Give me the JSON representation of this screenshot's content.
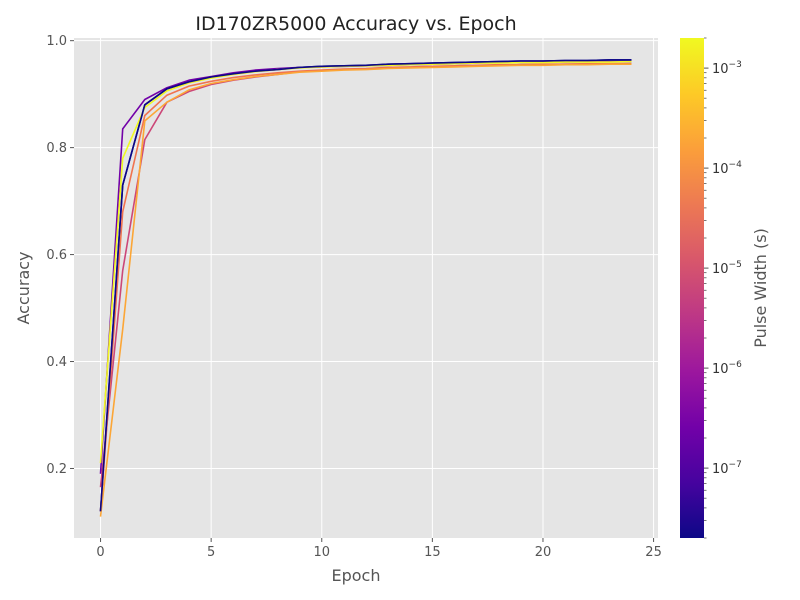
{
  "chart_data": {
    "type": "line",
    "title": "ID170ZR5000 Accuracy vs. Epoch",
    "xlabel": "Epoch",
    "ylabel": "Accuracy",
    "xlim": [
      -1.2,
      25.2
    ],
    "ylim": [
      0.07,
      1.005
    ],
    "x_ticks": [
      0,
      5,
      10,
      15,
      20,
      25
    ],
    "y_ticks": [
      0.2,
      0.4,
      0.6,
      0.8,
      1.0
    ],
    "y_tick_labels": [
      "0.2",
      "0.4",
      "0.6",
      "0.8",
      "1.0"
    ],
    "grid": true,
    "background": "#e5e5e5",
    "colorbar": {
      "label": "Pulse Width (s)",
      "scale": "log",
      "colormap": "plasma",
      "colors": [
        "#0d0887",
        "#46039f",
        "#7201a8",
        "#9c179e",
        "#bd3786",
        "#d8576b",
        "#ed7953",
        "#fb9f3a",
        "#fdca26",
        "#f0f921"
      ],
      "range": [
        2e-08,
        0.002
      ],
      "major_ticks": [
        {
          "value": 1e-07,
          "base": "10",
          "exp": "−7"
        },
        {
          "value": 1e-06,
          "base": "10",
          "exp": "−6"
        },
        {
          "value": 1e-05,
          "base": "10",
          "exp": "−5"
        },
        {
          "value": 0.0001,
          "base": "10",
          "exp": "−4"
        },
        {
          "value": 0.001,
          "base": "10",
          "exp": "−3"
        }
      ]
    },
    "x": [
      0,
      1,
      2,
      3,
      4,
      5,
      6,
      7,
      8,
      9,
      10,
      11,
      12,
      13,
      14,
      15,
      16,
      17,
      18,
      19,
      20,
      21,
      22,
      23,
      24
    ],
    "series": [
      {
        "color": "#0d0887",
        "pulse_width": 2e-08,
        "values": [
          0.12,
          0.73,
          0.88,
          0.91,
          0.923,
          0.932,
          0.938,
          0.943,
          0.946,
          0.95,
          0.952,
          0.953,
          0.954,
          0.956,
          0.957,
          0.958,
          0.959,
          0.96,
          0.961,
          0.962,
          0.962,
          0.963,
          0.963,
          0.964,
          0.964
        ]
      },
      {
        "color": "#7201a8",
        "pulse_width": 7e-07,
        "values": [
          0.19,
          0.835,
          0.89,
          0.912,
          0.926,
          0.933,
          0.94,
          0.945,
          0.948,
          0.95,
          0.951,
          0.952,
          0.953,
          0.954,
          0.955,
          0.956,
          0.957,
          0.958,
          0.959,
          0.959,
          0.96,
          0.96,
          0.961,
          0.961,
          0.961
        ]
      },
      {
        "color": "#cc4778",
        "pulse_width": 1e-05,
        "values": [
          0.165,
          0.57,
          0.815,
          0.885,
          0.905,
          0.918,
          0.926,
          0.932,
          0.937,
          0.942,
          0.944,
          0.946,
          0.947,
          0.949,
          0.95,
          0.951,
          0.952,
          0.953,
          0.954,
          0.955,
          0.955,
          0.956,
          0.956,
          0.957,
          0.957
        ]
      },
      {
        "color": "#f0734f",
        "pulse_width": 0.00015,
        "values": [
          0.12,
          0.68,
          0.86,
          0.898,
          0.915,
          0.924,
          0.931,
          0.936,
          0.94,
          0.943,
          0.945,
          0.947,
          0.948,
          0.95,
          0.951,
          0.952,
          0.953,
          0.954,
          0.955,
          0.955,
          0.956,
          0.956,
          0.957,
          0.957,
          0.957
        ]
      },
      {
        "color": "#fca636",
        "pulse_width": 0.0003,
        "values": [
          0.11,
          0.46,
          0.85,
          0.885,
          0.908,
          0.92,
          0.927,
          0.933,
          0.937,
          0.941,
          0.943,
          0.945,
          0.946,
          0.948,
          0.949,
          0.95,
          0.951,
          0.952,
          0.953,
          0.954,
          0.954,
          0.955,
          0.955,
          0.956,
          0.956
        ]
      },
      {
        "color": "#f0f921",
        "pulse_width": 0.002,
        "values": [
          0.21,
          0.78,
          0.875,
          0.906,
          0.921,
          0.93,
          0.937,
          0.942,
          0.946,
          0.949,
          0.951,
          0.952,
          0.953,
          0.954,
          0.955,
          0.956,
          0.957,
          0.958,
          0.958,
          0.959,
          0.959,
          0.96,
          0.96,
          0.96,
          0.961
        ]
      },
      {
        "color": "#0d0887",
        "pulse_width": 2e-08,
        "values": [
          0.12,
          0.73,
          0.88,
          0.91,
          0.923,
          0.932,
          0.938,
          0.943,
          0.946,
          0.95,
          0.952,
          0.953,
          0.954,
          0.956,
          0.957,
          0.958,
          0.959,
          0.96,
          0.961,
          0.962,
          0.962,
          0.963,
          0.963,
          0.964,
          0.964
        ]
      }
    ]
  }
}
